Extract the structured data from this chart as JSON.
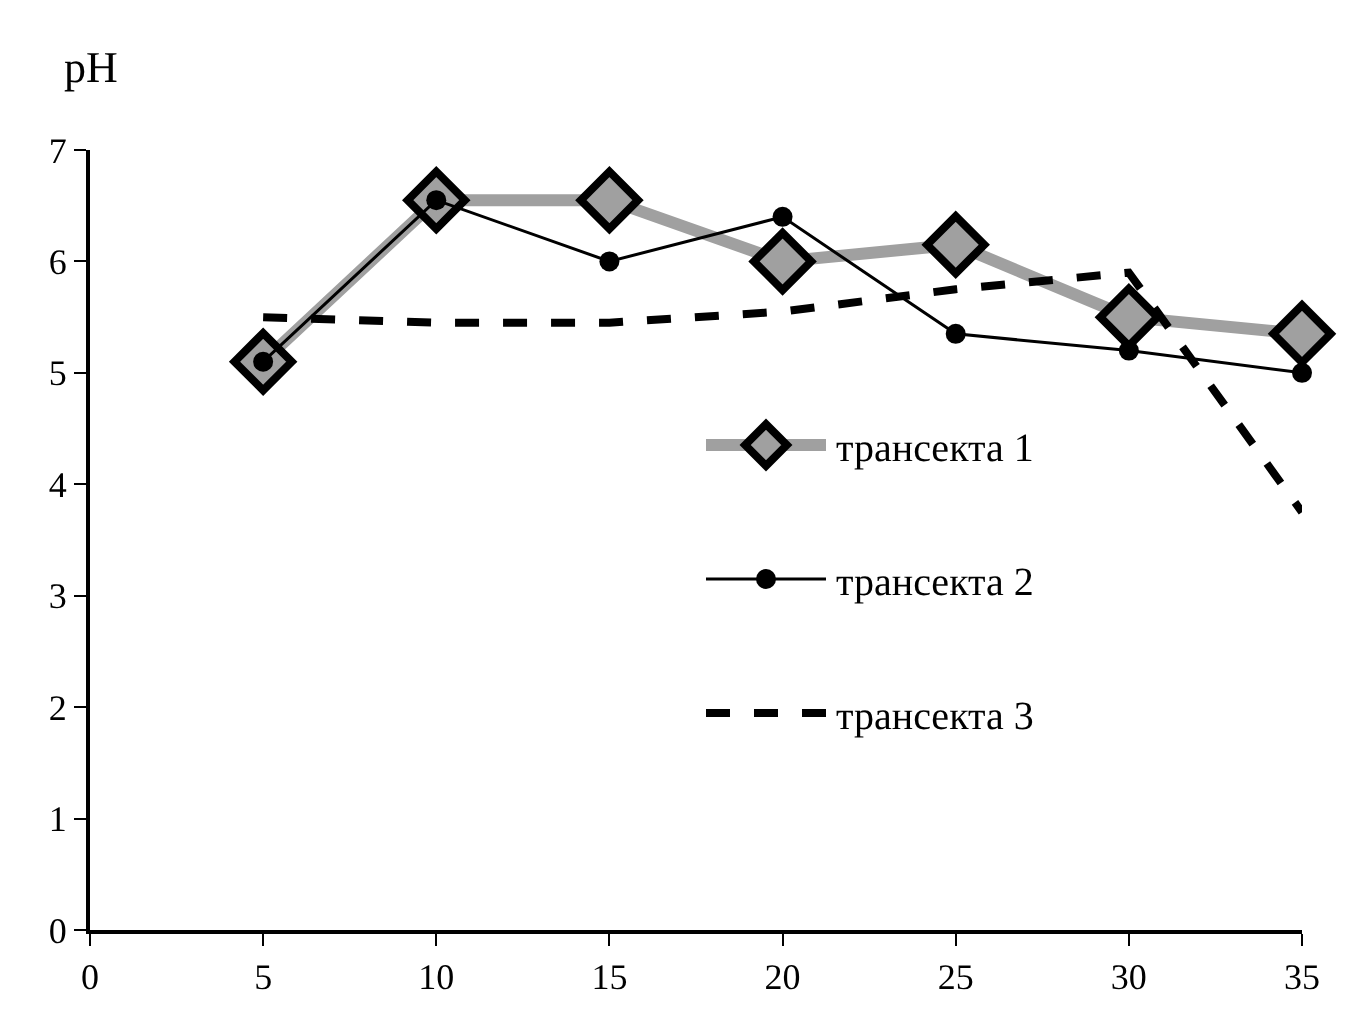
{
  "chart_data": {
    "type": "line",
    "ylabel": "pH",
    "x": [
      5,
      10,
      15,
      20,
      25,
      30,
      35
    ],
    "series": [
      {
        "name": "трансекта 1",
        "color": "#a0a0a0",
        "values": [
          5.1,
          6.55,
          6.55,
          6.0,
          6.15,
          5.5,
          5.35
        ],
        "marker": "diamond",
        "line_style": "solid"
      },
      {
        "name": "трансекта 2",
        "color": "#000000",
        "values": [
          5.1,
          6.55,
          6.0,
          6.4,
          5.35,
          5.2,
          5.0
        ],
        "marker": "circle",
        "line_style": "solid"
      },
      {
        "name": "трансекта 3",
        "color": "#000000",
        "values": [
          5.5,
          5.45,
          5.45,
          5.55,
          5.75,
          5.9,
          3.75
        ],
        "marker": "none",
        "line_style": "dashed"
      }
    ],
    "xlim": [
      0,
      35
    ],
    "xticks": [
      0,
      5,
      10,
      15,
      20,
      25,
      30,
      35
    ],
    "ylim": [
      0,
      7
    ],
    "yticks": [
      0,
      1,
      2,
      3,
      4,
      5,
      6,
      7
    ],
    "grid": false,
    "legend": "right"
  }
}
